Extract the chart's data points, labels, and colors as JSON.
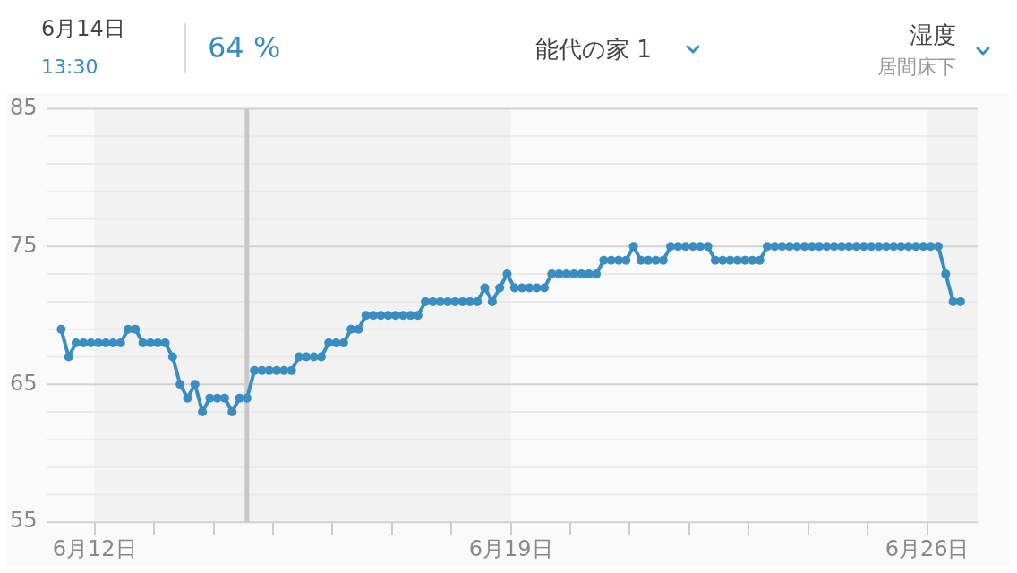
{
  "chart_data": {
    "type": "line",
    "title": "能代の家 1",
    "annotations": [
      "6月14日",
      "13:30",
      "64 %",
      "湿度",
      "居間床下"
    ],
    "x": [
      "--06-11T10:30",
      "--06-11T13:30",
      "--06-11T16:30",
      "--06-11T19:30",
      "--06-11T22:30",
      "--06-12T01:30",
      "--06-12T04:30",
      "--06-12T07:30",
      "--06-12T10:30",
      "--06-12T13:30",
      "--06-12T16:30",
      "--06-12T19:30",
      "--06-12T22:30",
      "--06-13T01:30",
      "--06-13T04:30",
      "--06-13T07:30",
      "--06-13T10:30",
      "--06-13T13:30",
      "--06-13T16:30",
      "--06-13T19:30",
      "--06-13T22:30",
      "--06-14T01:30",
      "--06-14T04:30",
      "--06-14T07:30",
      "--06-14T10:30",
      "--06-14T13:30",
      "--06-14T16:30",
      "--06-14T19:30",
      "--06-14T22:30",
      "--06-15T01:30",
      "--06-15T04:30",
      "--06-15T07:30",
      "--06-15T10:30",
      "--06-15T13:30",
      "--06-15T16:30",
      "--06-15T19:30",
      "--06-15T22:30",
      "--06-16T01:30",
      "--06-16T04:30",
      "--06-16T07:30",
      "--06-16T10:30",
      "--06-16T13:30",
      "--06-16T16:30",
      "--06-16T19:30",
      "--06-16T22:30",
      "--06-17T01:30",
      "--06-17T04:30",
      "--06-17T07:30",
      "--06-17T10:30",
      "--06-17T13:30",
      "--06-17T16:30",
      "--06-17T19:30",
      "--06-17T22:30",
      "--06-18T01:30",
      "--06-18T04:30",
      "--06-18T07:30",
      "--06-18T10:30",
      "--06-18T13:30",
      "--06-18T16:30",
      "--06-18T19:30",
      "--06-18T22:30",
      "--06-19T01:30",
      "--06-19T04:30",
      "--06-19T07:30",
      "--06-19T10:30",
      "--06-19T13:30",
      "--06-19T16:30",
      "--06-19T19:30",
      "--06-19T22:30",
      "--06-20T01:30",
      "--06-20T04:30",
      "--06-20T07:30",
      "--06-20T10:30",
      "--06-20T13:30",
      "--06-20T16:30",
      "--06-20T19:30",
      "--06-20T22:30",
      "--06-21T01:30",
      "--06-21T04:30",
      "--06-21T07:30",
      "--06-21T10:30",
      "--06-21T13:30",
      "--06-21T16:30",
      "--06-21T19:30",
      "--06-21T22:30",
      "--06-22T01:30",
      "--06-22T04:30",
      "--06-22T07:30",
      "--06-22T10:30",
      "--06-22T13:30",
      "--06-22T16:30",
      "--06-22T19:30",
      "--06-22T22:30",
      "--06-23T01:30",
      "--06-23T04:30",
      "--06-23T07:30",
      "--06-23T10:30",
      "--06-23T13:30",
      "--06-23T16:30",
      "--06-23T19:30",
      "--06-23T22:30",
      "--06-24T01:30",
      "--06-24T04:30",
      "--06-24T07:30",
      "--06-24T10:30",
      "--06-24T13:30",
      "--06-24T16:30",
      "--06-24T19:30",
      "--06-24T22:30",
      "--06-25T01:30",
      "--06-25T04:30",
      "--06-25T07:30",
      "--06-25T10:30",
      "--06-25T13:30",
      "--06-25T16:30",
      "--06-25T19:30",
      "--06-25T22:30",
      "--06-26T01:30",
      "--06-26T04:30",
      "--06-26T07:30",
      "--06-26T10:30",
      "--06-26T13:30"
    ],
    "series": [
      {
        "color": "#3a8dc1",
        "values": [
          69,
          67,
          68,
          68,
          68,
          68,
          68,
          68,
          68,
          69,
          69,
          68,
          68,
          68,
          68,
          67,
          65,
          64,
          65,
          63,
          64,
          64,
          64,
          63,
          64,
          64,
          66,
          66,
          66,
          66,
          66,
          66,
          67,
          67,
          67,
          67,
          68,
          68,
          68,
          69,
          69,
          70,
          70,
          70,
          70,
          70,
          70,
          70,
          70,
          71,
          71,
          71,
          71,
          71,
          71,
          71,
          71,
          72,
          71,
          72,
          73,
          72,
          72,
          72,
          72,
          72,
          73,
          73,
          73,
          73,
          73,
          73,
          73,
          74,
          74,
          74,
          74,
          75,
          74,
          74,
          74,
          74,
          75,
          75,
          75,
          75,
          75,
          75,
          74,
          74,
          74,
          74,
          74,
          74,
          74,
          75,
          75,
          75,
          75,
          75,
          75,
          75,
          75,
          75,
          75,
          75,
          75,
          75,
          75,
          75,
          75,
          75,
          75,
          75,
          75,
          75,
          75,
          75,
          75,
          73,
          71,
          71
        ]
      }
    ],
    "xlim": [
      "--06-11T04:48",
      "--06-26T20:24"
    ],
    "xticks": [
      {
        "value": "--06-12",
        "label": "6月12日"
      },
      {
        "value": "--06-13",
        "label": null
      },
      {
        "value": "--06-14",
        "label": null
      },
      {
        "value": "--06-15",
        "label": null
      },
      {
        "value": "--06-16",
        "label": null
      },
      {
        "value": "--06-17",
        "label": null
      },
      {
        "value": "--06-18",
        "label": null
      },
      {
        "value": "--06-19",
        "label": "6月19日"
      },
      {
        "value": "--06-20",
        "label": null
      },
      {
        "value": "--06-21",
        "label": null
      },
      {
        "value": "--06-22",
        "label": null
      },
      {
        "value": "--06-23",
        "label": null
      },
      {
        "value": "--06-24",
        "label": null
      },
      {
        "value": "--06-25",
        "label": null
      },
      {
        "value": "--06-26",
        "label": "6月26日"
      }
    ],
    "ylim": [
      55,
      85
    ],
    "yticks": [
      55,
      {
        "value": 57,
        "label": null
      },
      {
        "value": 59,
        "label": null
      },
      {
        "value": 61,
        "label": null
      },
      {
        "value": 63,
        "label": null
      },
      65,
      {
        "value": 67,
        "label": null
      },
      {
        "value": 69,
        "label": null
      },
      {
        "value": 71,
        "label": null
      },
      {
        "value": 73,
        "label": null
      },
      75,
      {
        "value": 77,
        "label": null
      },
      {
        "value": 79,
        "label": null
      },
      {
        "value": 81,
        "label": null
      },
      {
        "value": 83,
        "label": null
      },
      85
    ],
    "grid": "y",
    "marker": "circle",
    "line_style": "solid",
    "legend": false,
    "ref_lines": [
      {
        "axis": "x",
        "value": "--06-14T13:30",
        "color": "#c8c8c8"
      }
    ],
    "bands": [
      {
        "axis": "x",
        "from": "--06-12",
        "to": "--06-19",
        "color": "#f2f2f2"
      },
      {
        "axis": "x",
        "from": "--06-26",
        "to": "--06-26T20:24",
        "color": "#f2f2f2"
      }
    ]
  }
}
